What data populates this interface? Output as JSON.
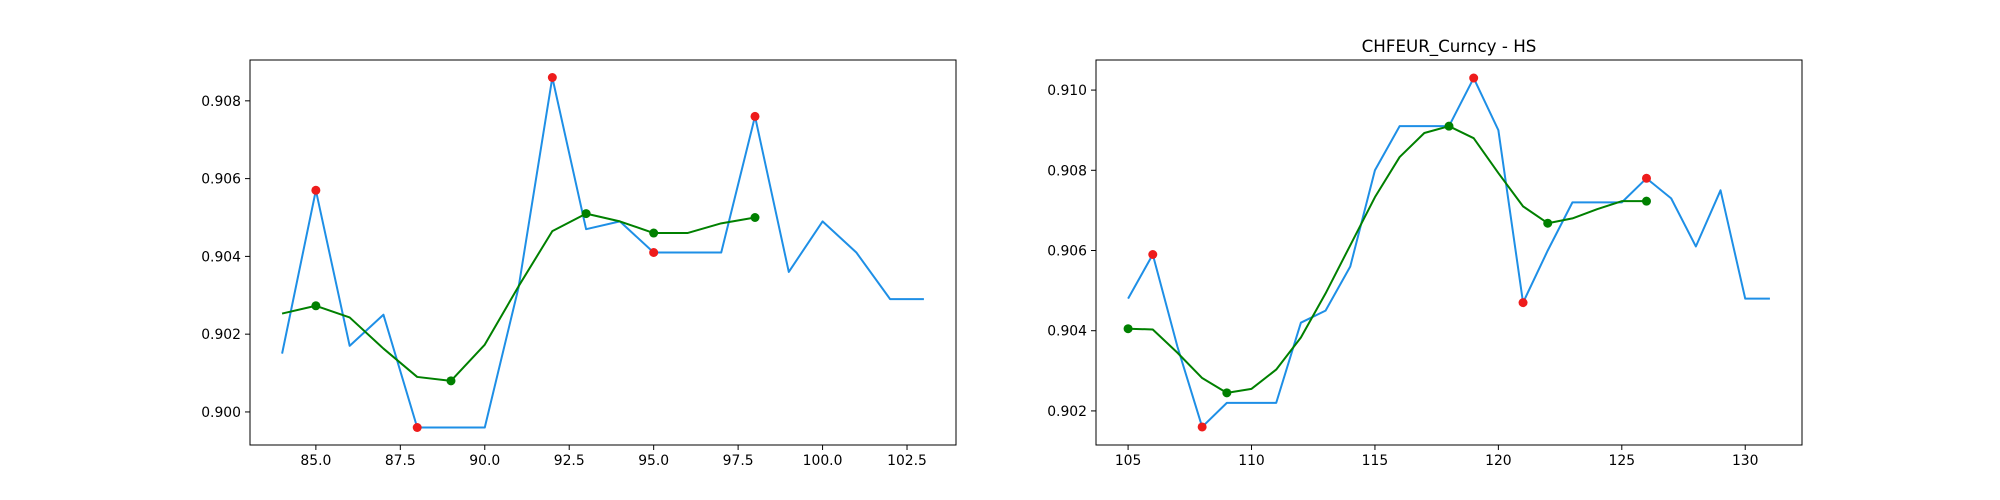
{
  "chart_data": [
    {
      "type": "line",
      "title": "",
      "xlabel": "",
      "ylabel": "",
      "xlim": [
        83.05,
        103.95
      ],
      "ylim": [
        0.89915,
        0.90905
      ],
      "xticks": [
        85.0,
        87.5,
        90.0,
        92.5,
        95.0,
        97.5,
        100.0,
        102.5
      ],
      "xtick_labels": [
        "85.0",
        "87.5",
        "90.0",
        "92.5",
        "95.0",
        "97.5",
        "100.0",
        "102.5"
      ],
      "yticks": [
        0.9,
        0.902,
        0.904,
        0.906,
        0.908
      ],
      "ytick_labels": [
        "0.900",
        "0.902",
        "0.904",
        "0.906",
        "0.908"
      ],
      "grid": false,
      "series": [
        {
          "kind": "line",
          "color": "#1e8fe6",
          "x": [
            84,
            85,
            86,
            87,
            88,
            89,
            90,
            91,
            92,
            93,
            94,
            95,
            96,
            97,
            98,
            99,
            100,
            101,
            102,
            103
          ],
          "y": [
            0.9015,
            0.9057,
            0.9017,
            0.9025,
            0.8996,
            0.8996,
            0.8996,
            0.9032,
            0.9086,
            0.9047,
            0.9049,
            0.9041,
            0.9041,
            0.9041,
            0.9076,
            0.9036,
            0.9049,
            0.9041,
            0.9029,
            0.9029
          ]
        },
        {
          "kind": "line",
          "color": "#008000",
          "x": [
            84,
            85,
            86,
            87,
            88,
            89,
            90,
            91,
            92,
            93,
            94,
            95,
            96,
            97,
            98
          ],
          "y": [
            0.90253,
            0.90273,
            0.90243,
            0.90163,
            0.9009,
            0.9008,
            0.90173,
            0.90323,
            0.90465,
            0.9051,
            0.9049,
            0.9046,
            0.9046,
            0.90485,
            0.905
          ]
        },
        {
          "kind": "scatter",
          "color": "#ee1c1c",
          "x": [
            85,
            88,
            92,
            95,
            98
          ],
          "y": [
            0.9057,
            0.8996,
            0.9086,
            0.9041,
            0.9076
          ]
        },
        {
          "kind": "scatter",
          "color": "#008000",
          "x": [
            85,
            89,
            93,
            95,
            98
          ],
          "y": [
            0.90273,
            0.9008,
            0.9051,
            0.9046,
            0.905
          ]
        }
      ]
    },
    {
      "type": "line",
      "title": "CHFEUR_Curncy - HS",
      "xlabel": "",
      "ylabel": "",
      "xlim": [
        103.7,
        132.3
      ],
      "ylim": [
        0.90115,
        0.91075
      ],
      "xticks": [
        105,
        110,
        115,
        120,
        125,
        130
      ],
      "xtick_labels": [
        "105",
        "110",
        "115",
        "120",
        "125",
        "130"
      ],
      "yticks": [
        0.902,
        0.904,
        0.906,
        0.908,
        0.91
      ],
      "ytick_labels": [
        "0.902",
        "0.904",
        "0.906",
        "0.908",
        "0.910"
      ],
      "grid": false,
      "series": [
        {
          "kind": "line",
          "color": "#1e8fe6",
          "x": [
            105,
            106,
            107,
            108,
            109,
            110,
            111,
            112,
            113,
            114,
            115,
            116,
            117,
            118,
            119,
            120,
            121,
            122,
            123,
            124,
            125,
            126,
            127,
            128,
            129,
            130,
            131
          ],
          "y": [
            0.9048,
            0.9059,
            0.9036,
            0.9016,
            0.9022,
            0.9022,
            0.9022,
            0.9042,
            0.9045,
            0.9056,
            0.908,
            0.9091,
            0.9091,
            0.9091,
            0.9103,
            0.909,
            0.9047,
            0.906,
            0.9072,
            0.9072,
            0.9072,
            0.9078,
            0.9073,
            0.9061,
            0.9075,
            0.9048,
            0.9048
          ]
        },
        {
          "kind": "line",
          "color": "#008000",
          "x": [
            105,
            106,
            107,
            108,
            109,
            110,
            111,
            112,
            113,
            114,
            115,
            116,
            117,
            118,
            119,
            120,
            121,
            122,
            123,
            124,
            125,
            126
          ],
          "y": [
            0.90405,
            0.90403,
            0.90345,
            0.90282,
            0.90245,
            0.90255,
            0.90303,
            0.90383,
            0.90493,
            0.90613,
            0.90733,
            0.90833,
            0.90893,
            0.9091,
            0.9088,
            0.90793,
            0.9071,
            0.90668,
            0.9068,
            0.90703,
            0.90723,
            0.90723
          ]
        },
        {
          "kind": "scatter",
          "color": "#ee1c1c",
          "x": [
            106,
            108,
            119,
            121,
            126
          ],
          "y": [
            0.9059,
            0.9016,
            0.9103,
            0.9047,
            0.9078
          ]
        },
        {
          "kind": "scatter",
          "color": "#008000",
          "x": [
            105,
            109,
            118,
            122,
            126
          ],
          "y": [
            0.90405,
            0.90245,
            0.9091,
            0.90668,
            0.90723
          ]
        }
      ]
    }
  ]
}
